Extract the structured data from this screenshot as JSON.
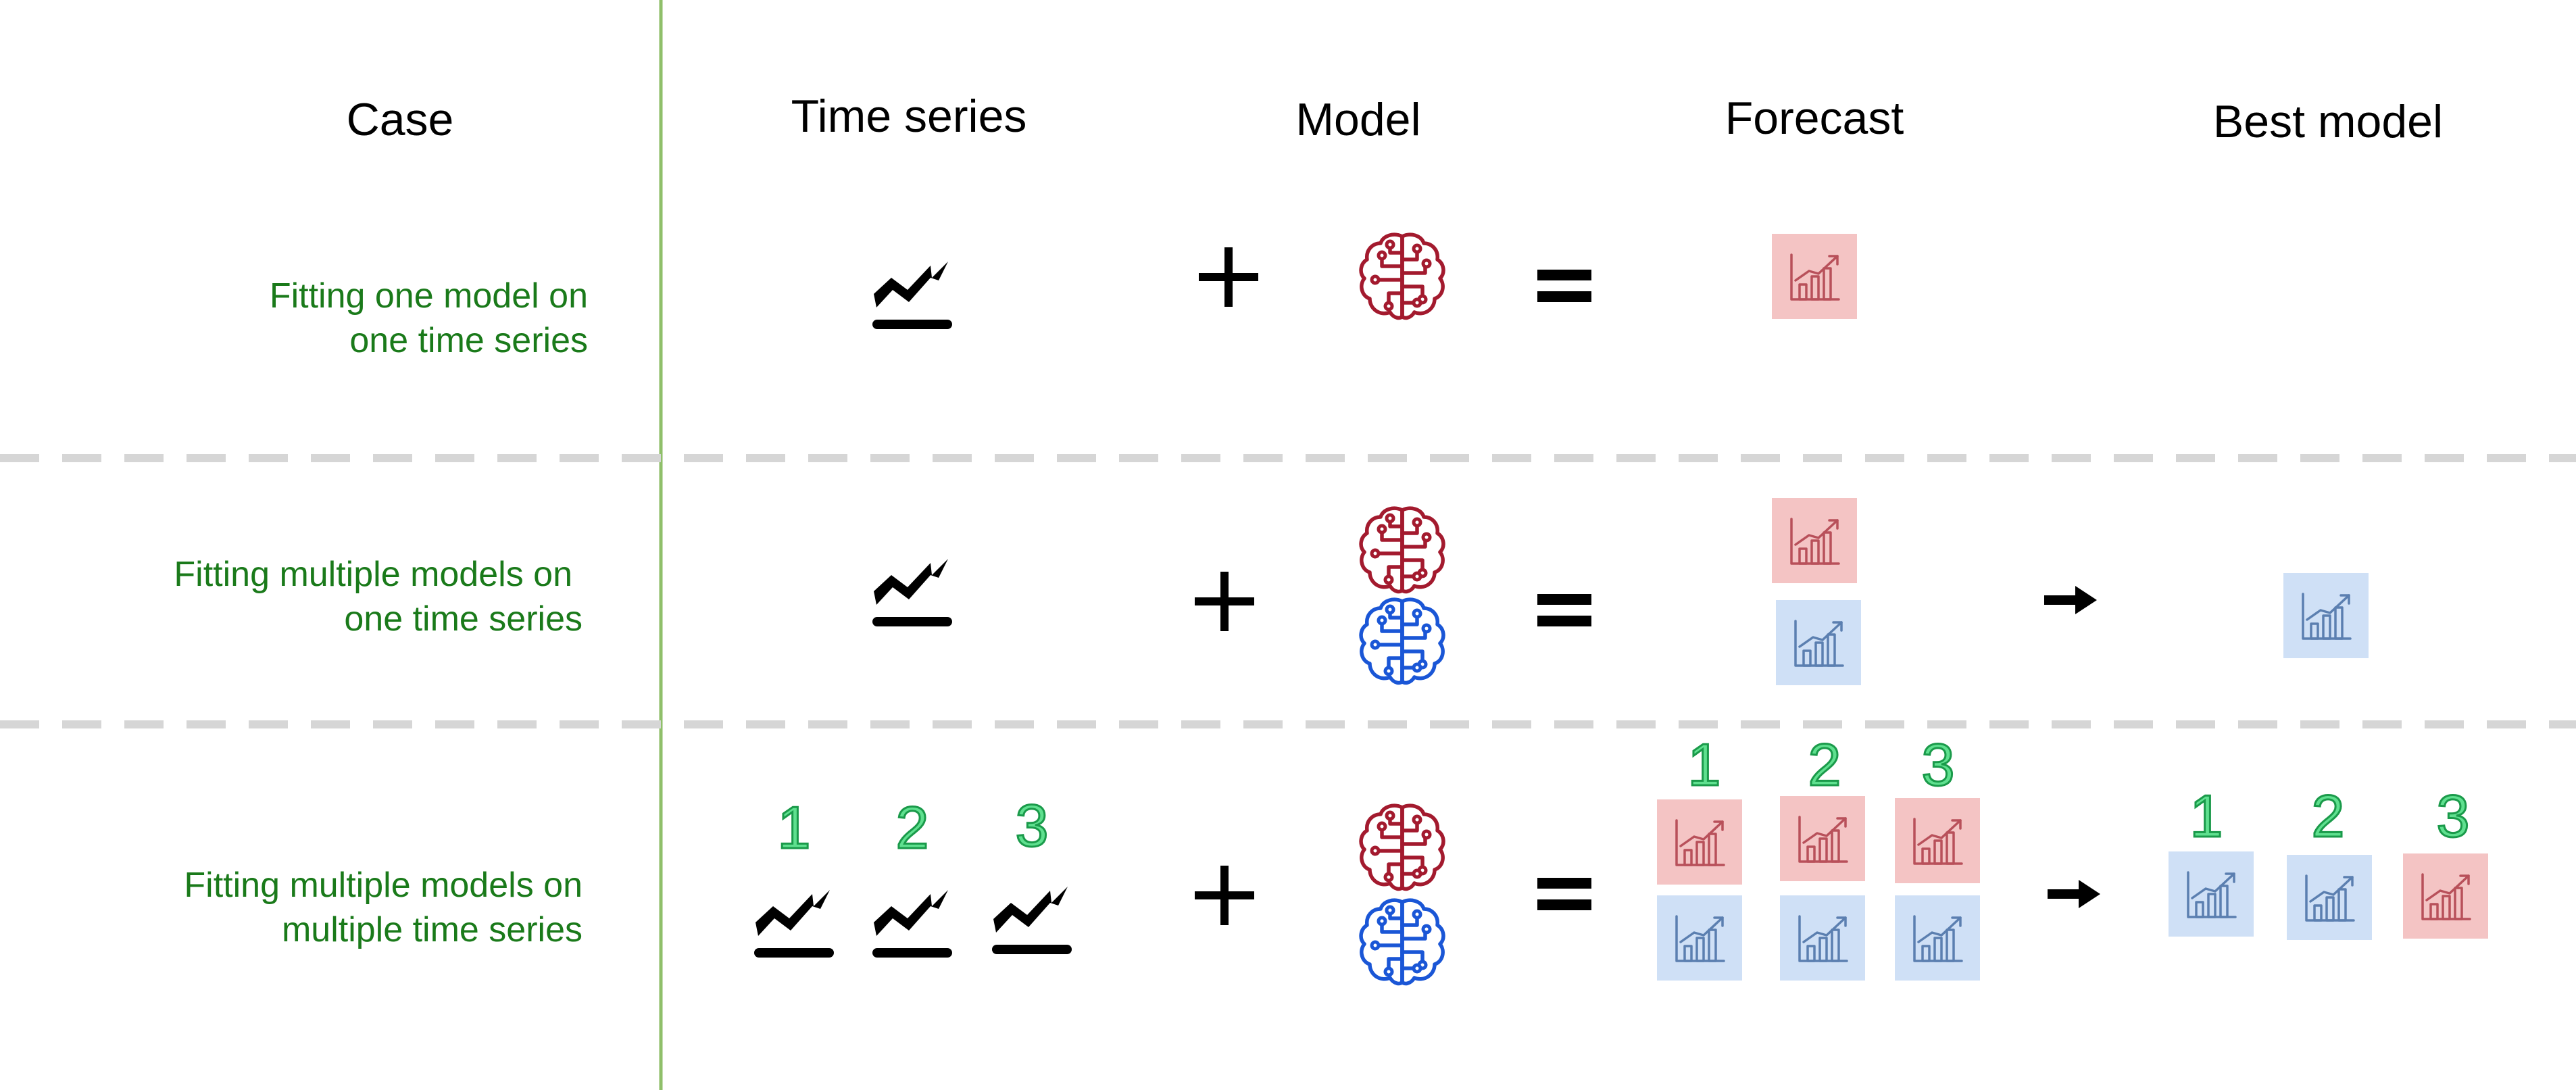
{
  "headers": {
    "case": "Case",
    "time_series": "Time series",
    "model": "Model",
    "forecast": "Forecast",
    "best_model": "Best model"
  },
  "rows": [
    {
      "case_line1": "Fitting one model on",
      "case_line2": "one time series"
    },
    {
      "case_line1": "Fitting multiple models on",
      "case_line2": "one time series"
    },
    {
      "case_line1": "Fitting multiple models on",
      "case_line2": "multiple time series"
    }
  ],
  "series_numbers": [
    "1",
    "2",
    "3"
  ],
  "operators": {
    "plus": "+",
    "equals": "=",
    "arrow": "➡"
  },
  "icons": {
    "time_series": "trend-line-icon",
    "model": "brain-circuit-icon",
    "forecast": "bar-chart-growth-icon"
  },
  "colors": {
    "case_text": "#1a7a1a",
    "divider_vertical": "#8fbf6a",
    "divider_dashed": "#d6d6d6",
    "model_red": "#a31a2e",
    "model_blue": "#1a56d6",
    "forecast_red_bg": "#f4c4c4",
    "forecast_red_fg": "#b8505a",
    "forecast_blue_bg": "#cfe0f6",
    "forecast_blue_fg": "#5b7fb0",
    "number_fill": "#5fe08f",
    "number_stroke": "#1a9a4a"
  }
}
